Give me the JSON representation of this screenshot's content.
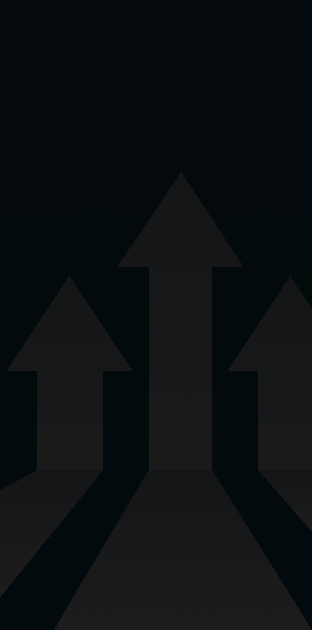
{
  "scene": {
    "description_icon": "upward-arrows-graphic",
    "colors": {
      "background": "#030a0d",
      "arrow_fill_top": "#161718",
      "arrow_fill_bottom": "#1b1b1c",
      "path_fill": "#18191a"
    }
  }
}
